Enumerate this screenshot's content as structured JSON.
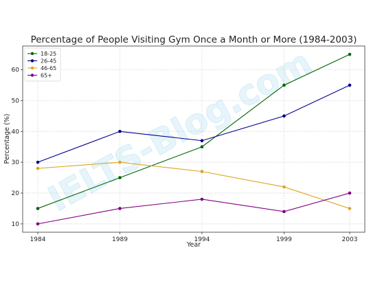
{
  "chart_data": {
    "type": "line",
    "title": "Percentage of People Visiting Gym Once a Month or More (1984-2003)",
    "xlabel": "Year",
    "ylabel": "Percentage (%)",
    "x": [
      1984,
      1989,
      1994,
      1999,
      2003
    ],
    "x_tick_labels": [
      "1984",
      "1989",
      "1994",
      "1999",
      "2003"
    ],
    "y_ticks": [
      10,
      20,
      30,
      40,
      50,
      60
    ],
    "ylim": [
      7.3,
      67.7
    ],
    "grid": true,
    "grid_style": "dotted",
    "legend_position": "top-left",
    "series": [
      {
        "name": "18-25",
        "color": "#006400",
        "values": [
          15,
          25,
          35,
          55,
          65
        ]
      },
      {
        "name": "26-45",
        "color": "#00008b",
        "values": [
          30,
          40,
          37,
          45,
          55
        ]
      },
      {
        "name": "46-65",
        "color": "#daa520",
        "values": [
          28,
          30,
          27,
          22,
          15
        ]
      },
      {
        "name": "65+",
        "color": "#800080",
        "values": [
          10,
          15,
          18,
          14,
          20
        ]
      }
    ]
  },
  "watermark": {
    "text": "IELTS-Blog.com"
  }
}
